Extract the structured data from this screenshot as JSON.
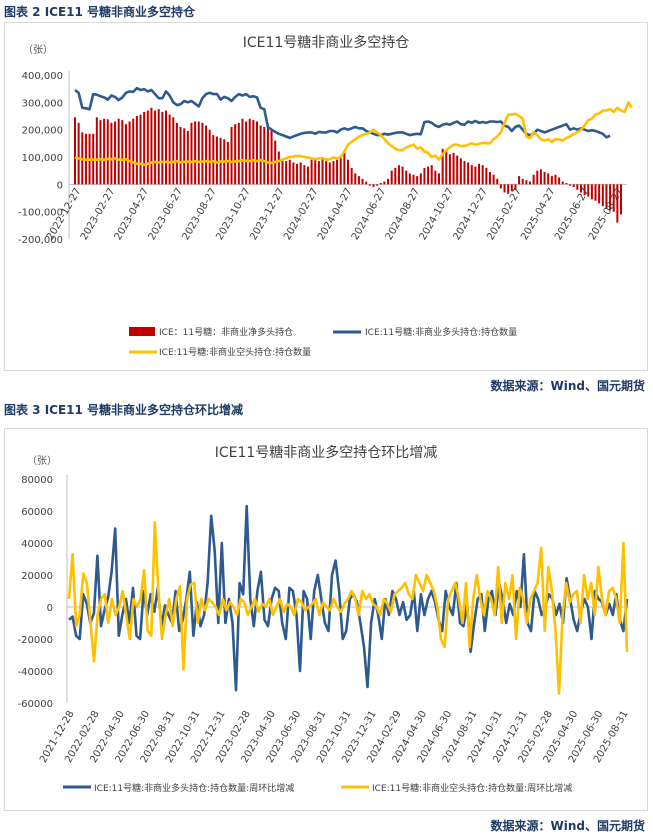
{
  "figure1": {
    "caption": "图表 2 ICE11 号糖非商业多空持仓",
    "source": "数据来源：Wind、国元期货",
    "colors": {
      "net": "#c00000",
      "long": "#2e5a8f",
      "short": "#ffc000",
      "axis": "#bfbfbf"
    },
    "chart_data": {
      "type": "bar",
      "title": "ICE11号糖非商业多空持仓",
      "unit_label": "（张）",
      "ylim": [
        -200000,
        400000
      ],
      "y_ticks": [
        "400,000",
        "300,000",
        "200,000",
        "100,000",
        "0",
        "-100,000",
        "-200,000"
      ],
      "x_ticks": [
        "2022-12-27",
        "2023-02-27",
        "2023-04-27",
        "2023-06-27",
        "2023-08-27",
        "2023-10-27",
        "2023-12-27",
        "2024-02-27",
        "2024-04-27",
        "2024-06-27",
        "2024-08-27",
        "2024-10-27",
        "2024-12-27",
        "2025-02-27",
        "2025-04-27",
        "2025-06-27",
        "2025-08-27"
      ],
      "legend_placement": "bottom",
      "series": [
        {
          "name": "ICE：11号糖：非商业净多头持仓",
          "kind": "bar",
          "values": [
            245000,
            225000,
            190000,
            185000,
            185000,
            185000,
            245000,
            235000,
            240000,
            238000,
            225000,
            230000,
            240000,
            235000,
            220000,
            230000,
            240000,
            250000,
            255000,
            265000,
            270000,
            280000,
            270000,
            275000,
            265000,
            270000,
            255000,
            245000,
            225000,
            210000,
            205000,
            195000,
            225000,
            230000,
            230000,
            225000,
            215000,
            200000,
            180000,
            175000,
            170000,
            165000,
            155000,
            210000,
            220000,
            225000,
            240000,
            230000,
            240000,
            235000,
            230000,
            215000,
            210000,
            220000,
            200000,
            160000,
            120000,
            90000,
            85000,
            90000,
            80000,
            75000,
            80000,
            70000,
            65000,
            90000,
            95000,
            85000,
            100000,
            85000,
            80000,
            85000,
            90000,
            100000,
            120000,
            90000,
            60000,
            40000,
            30000,
            20000,
            10000,
            -5000,
            -10000,
            -5000,
            5000,
            10000,
            20000,
            50000,
            60000,
            70000,
            65000,
            50000,
            40000,
            35000,
            30000,
            40000,
            60000,
            65000,
            70000,
            50000,
            40000,
            130000,
            120000,
            110000,
            115000,
            105000,
            95000,
            85000,
            80000,
            70000,
            65000,
            75000,
            70000,
            60000,
            45000,
            35000,
            20000,
            -15000,
            -30000,
            -35000,
            -25000,
            -20000,
            30000,
            20000,
            15000,
            10000,
            35000,
            50000,
            55000,
            45000,
            40000,
            30000,
            35000,
            25000,
            10000,
            5000,
            -5000,
            -10000,
            -20000,
            -30000,
            -40000,
            -45000,
            -55000,
            -60000,
            -70000,
            -80000,
            -90000,
            -95000,
            -100000,
            -140000,
            -110000
          ]
        },
        {
          "name": "ICE:11号糖:非商业多头持仓:持仓数量",
          "kind": "line",
          "values": [
            345000,
            335000,
            280000,
            278000,
            275000,
            330000,
            328000,
            322000,
            318000,
            310000,
            325000,
            320000,
            308000,
            318000,
            335000,
            340000,
            338000,
            352000,
            345000,
            348000,
            340000,
            345000,
            330000,
            315000,
            315000,
            340000,
            325000,
            300000,
            290000,
            293000,
            305000,
            300000,
            305000,
            295000,
            285000,
            315000,
            330000,
            335000,
            330000,
            330000,
            310000,
            320000,
            315000,
            305000,
            320000,
            330000,
            325000,
            330000,
            320000,
            322000,
            318000,
            280000,
            275000,
            210000,
            200000,
            192000,
            185000,
            180000,
            175000,
            170000,
            175000,
            180000,
            185000,
            188000,
            190000,
            190000,
            185000,
            192000,
            190000,
            190000,
            195000,
            195000,
            190000,
            200000,
            205000,
            200000,
            205000,
            210000,
            205000,
            205000,
            195000,
            190000,
            185000,
            180000,
            180000,
            185000,
            182000,
            185000,
            188000,
            190000,
            190000,
            185000,
            180000,
            183000,
            185000,
            183000,
            228000,
            230000,
            225000,
            215000,
            210000,
            218000,
            222000,
            218000,
            225000,
            230000,
            220000,
            218000,
            230000,
            225000,
            232000,
            225000,
            228000,
            225000,
            230000,
            230000,
            228000,
            230000,
            215000,
            210000,
            195000,
            210000,
            215000,
            200000,
            185000,
            180000,
            185000,
            200000,
            195000,
            190000,
            195000,
            200000,
            205000,
            210000,
            215000,
            220000,
            200000,
            205000,
            200000,
            205000,
            200000,
            195000,
            198000,
            195000,
            190000,
            185000,
            172000,
            178000
          ]
        },
        {
          "name": "ICE:11号糖:非商业空头持仓:持仓数量",
          "kind": "line",
          "values": [
            98000,
            95000,
            92000,
            90000,
            90000,
            90000,
            90000,
            92000,
            90000,
            93000,
            92000,
            95000,
            90000,
            90000,
            92000,
            85000,
            80000,
            75000,
            75000,
            72000,
            75000,
            80000,
            82000,
            80000,
            82000,
            82000,
            80000,
            82000,
            85000,
            80000,
            82000,
            83000,
            82000,
            85000,
            82000,
            83000,
            85000,
            82000,
            85000,
            80000,
            84000,
            83000,
            85000,
            82000,
            84000,
            85000,
            88000,
            86000,
            85000,
            88000,
            85000,
            88000,
            85000,
            80000,
            78000,
            82000,
            85000,
            90000,
            95000,
            100000,
            102000,
            104000,
            103000,
            100000,
            98000,
            95000,
            92000,
            95000,
            96000,
            90000,
            92000,
            98000,
            95000,
            100000,
            120000,
            145000,
            155000,
            165000,
            175000,
            180000,
            185000,
            190000,
            200000,
            190000,
            180000,
            165000,
            150000,
            140000,
            130000,
            125000,
            125000,
            135000,
            140000,
            145000,
            130000,
            135000,
            120000,
            115000,
            100000,
            105000,
            90000,
            110000,
            125000,
            135000,
            145000,
            145000,
            140000,
            140000,
            145000,
            150000,
            145000,
            148000,
            152000,
            150000,
            150000,
            165000,
            175000,
            190000,
            225000,
            255000,
            255000,
            258000,
            250000,
            240000,
            175000,
            170000,
            190000,
            180000,
            165000,
            160000,
            165000,
            155000,
            165000,
            165000,
            160000,
            170000,
            175000,
            185000,
            190000,
            200000,
            215000,
            235000,
            240000,
            255000,
            260000,
            270000,
            270000,
            275000,
            265000,
            280000,
            270000,
            265000,
            300000,
            280000
          ]
        }
      ]
    }
  },
  "figure2": {
    "caption": "图表 3 ICE11 号糖非商业多空持仓环比增减",
    "source": "数据来源：Wind、国元期货",
    "colors": {
      "long": "#2e5a8f",
      "short": "#ffc000",
      "axis": "#bfbfbf"
    },
    "chart_data": {
      "type": "line",
      "title": "ICE11号糖非商业多空持仓环比增减",
      "unit_label": "（张）",
      "ylim": [
        -60000,
        80000
      ],
      "y_ticks": [
        "80000",
        "60000",
        "40000",
        "20000",
        "0",
        "-20000",
        "-40000",
        "-60000"
      ],
      "x_ticks": [
        "2021-12-28",
        "2022-02-28",
        "2022-04-30",
        "2022-06-30",
        "2022-08-31",
        "2022-10-31",
        "2022-12-31",
        "2023-02-28",
        "2023-04-30",
        "2023-06-30",
        "2023-08-31",
        "2023-10-31",
        "2023-12-31",
        "2024-02-29",
        "2024-04-30",
        "2024-06-30",
        "2024-08-31",
        "2024-10-31",
        "2024-12-31",
        "2025-02-28",
        "2025-04-30",
        "2025-06-30",
        "2025-08-31"
      ],
      "legend_placement": "bottom",
      "series": [
        {
          "name": "ICE:11号糖:非商业多头持仓:持仓数量:周环比增减",
          "values": [
            -8000,
            -6000,
            -18000,
            -20000,
            8000,
            2000,
            -10000,
            -4000,
            32000,
            -12000,
            -2000,
            6000,
            22000,
            49000,
            -18000,
            -5000,
            5000,
            -10000,
            12000,
            -18000,
            -20000,
            10000,
            -5000,
            8000,
            -3000,
            12000,
            -12000,
            1000,
            -5000,
            -10000,
            10000,
            -15000,
            -8000,
            5000,
            22000,
            -18000,
            3000,
            -12000,
            -5000,
            15000,
            57000,
            35000,
            -10000,
            40000,
            -10000,
            5000,
            -10000,
            -52000,
            15000,
            8000,
            63000,
            5000,
            -12000,
            10000,
            22000,
            -8000,
            -12000,
            5000,
            12000,
            10000,
            -10000,
            -20000,
            12000,
            10000,
            -5000,
            -40000,
            10000,
            5000,
            -20000,
            10000,
            20000,
            5000,
            -10000,
            -15000,
            20000,
            29000,
            10000,
            -20000,
            -15000,
            5000,
            8000,
            3000,
            -10000,
            -25000,
            -50000,
            -10000,
            5000,
            -5000,
            -20000,
            5000,
            -5000,
            10000,
            5000,
            -5000,
            3000,
            -8000,
            -5000,
            10000,
            -15000,
            8000,
            -5000,
            5000,
            10000,
            3000,
            -8000,
            -15000,
            10000,
            0,
            -5000,
            15000,
            -10000,
            -12000,
            2000,
            -28000,
            -10000,
            5000,
            8000,
            -15000,
            5000,
            10000,
            -5000,
            15000,
            5000,
            -10000,
            2000,
            -5000,
            10000,
            0,
            33000,
            -10000,
            -15000,
            10000,
            5000,
            -5000,
            0,
            8000,
            5000,
            -5000,
            2000,
            -10000,
            18000,
            5000,
            -8000,
            -15000,
            -3000,
            5000,
            0,
            -20000,
            10000,
            5000,
            3000,
            -5000,
            2000,
            -5000,
            8000,
            -8000,
            -15000,
            5000
          ]
        },
        {
          "name": "ICE:11号糖:非商业空头持仓:持仓数量:周环比增减",
          "values": [
            5000,
            33000,
            -12000,
            -5000,
            21000,
            15000,
            -10000,
            -34000,
            -5000,
            5000,
            8000,
            -10000,
            5000,
            -5000,
            0,
            10000,
            -5000,
            -20000,
            5000,
            0,
            5000,
            23000,
            -15000,
            -18000,
            53000,
            10000,
            -20000,
            -5000,
            5000,
            -12000,
            5000,
            13000,
            -39000,
            5000,
            14000,
            15000,
            -10000,
            5000,
            -2000,
            5000,
            3000,
            0,
            -5000,
            5000,
            -2000,
            3000,
            0,
            -5000,
            5000,
            3000,
            -5000,
            0,
            5000,
            -3000,
            2000,
            0,
            5000,
            -5000,
            0,
            5000,
            -3000,
            2000,
            0,
            -5000,
            5000,
            3000,
            -2000,
            0,
            2000,
            5000,
            -5000,
            3000,
            0,
            -2000,
            5000,
            0,
            -3000,
            2000,
            5000,
            10000,
            5000,
            -5000,
            10000,
            5000,
            8000,
            2000,
            0,
            -5000,
            5000,
            2000,
            -3000,
            8000,
            10000,
            12000,
            15000,
            8000,
            5000,
            20000,
            15000,
            10000,
            20000,
            15000,
            10000,
            0,
            -20000,
            -25000,
            5000,
            10000,
            15000,
            5000,
            -10000,
            15000,
            -25000,
            5000,
            20000,
            5000,
            -5000,
            10000,
            5000,
            -5000,
            25000,
            -10000,
            15000,
            5000,
            20000,
            -20000,
            12000,
            5000,
            -10000,
            5000,
            10000,
            15000,
            37000,
            -15000,
            25000,
            10000,
            -15000,
            -54000,
            -5000,
            15000,
            3000,
            8000,
            10000,
            -10000,
            20000,
            5000,
            15000,
            -5000,
            25000,
            5000,
            -5000,
            10000,
            12000,
            5000,
            -10000,
            40000,
            -28000
          ]
        }
      ]
    }
  }
}
